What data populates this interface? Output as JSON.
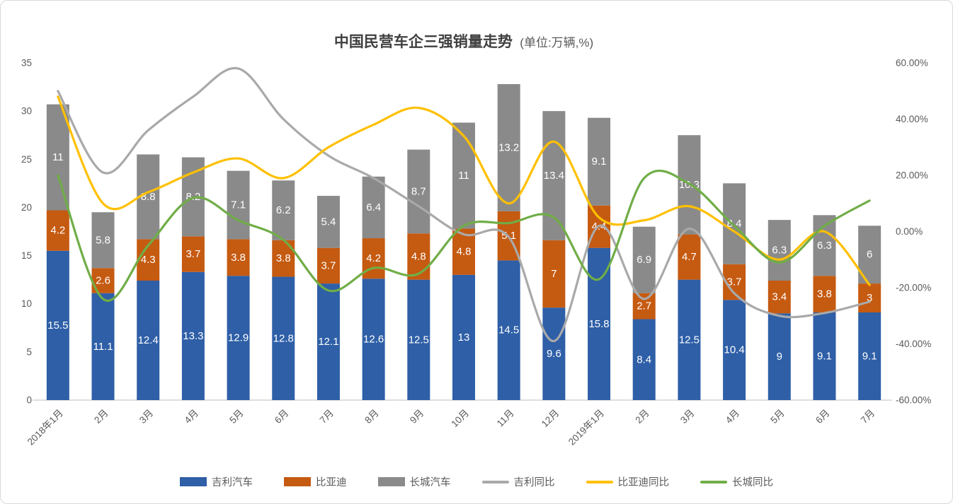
{
  "title": {
    "main": "中国民营车企三强销量走势",
    "unit": "(单位:万辆,%)"
  },
  "chart_data": {
    "type": "bar",
    "subtype": "stacked-bars-with-lines",
    "categories": [
      "2018年1月",
      "2月",
      "3月",
      "4月",
      "5月",
      "6月",
      "7月",
      "8月",
      "9月",
      "10月",
      "11月",
      "12月",
      "2019年1月",
      "2月",
      "3月",
      "4月",
      "5月",
      "6月",
      "7月"
    ],
    "bar_series": [
      {
        "name": "吉利汽车",
        "color": "#2E5FA7",
        "values": [
          15.5,
          11.1,
          12.4,
          13.3,
          12.9,
          12.8,
          12.1,
          12.6,
          12.5,
          13,
          14.5,
          9.6,
          15.8,
          8.4,
          12.5,
          10.4,
          9,
          9.1,
          9.1
        ]
      },
      {
        "name": "比亚迪",
        "color": "#C55A11",
        "values": [
          4.2,
          2.6,
          4.3,
          3.7,
          3.8,
          3.8,
          3.7,
          4.2,
          4.8,
          4.8,
          5.1,
          7,
          4.4,
          2.7,
          4.7,
          3.7,
          3.4,
          3.8,
          3
        ]
      },
      {
        "name": "长城汽车",
        "color": "#8A8A8A",
        "values": [
          11,
          5.8,
          8.8,
          8.2,
          7.1,
          6.2,
          5.4,
          6.4,
          8.7,
          11,
          13.2,
          13.4,
          9.1,
          6.9,
          10.3,
          8.4,
          6.3,
          6.3,
          6
        ]
      }
    ],
    "line_series": [
      {
        "name": "吉利同比",
        "color": "#A9A9A9",
        "values": [
          50,
          21,
          36,
          48,
          58,
          40,
          27,
          19,
          9,
          -1,
          -2,
          -39,
          2,
          -24,
          1,
          -22,
          -30,
          -29,
          -25
        ]
      },
      {
        "name": "比亚迪同比",
        "color": "#FFC000",
        "values": [
          48,
          10,
          14,
          21,
          26,
          19,
          30,
          38,
          44,
          34,
          10,
          32,
          5,
          4,
          9,
          0,
          -10,
          0,
          -19
        ]
      },
      {
        "name": "长城同比",
        "color": "#70AD47",
        "values": [
          20,
          -24,
          -5,
          12,
          4,
          -3,
          -21,
          -13,
          -15,
          2,
          3,
          5,
          -17,
          19,
          17,
          2,
          -11,
          2,
          11
        ]
      }
    ],
    "left_axis": {
      "min": 0,
      "max": 35,
      "step": 5,
      "tick_labels": [
        "0",
        "5",
        "10",
        "15",
        "20",
        "25",
        "30",
        "35"
      ]
    },
    "right_axis": {
      "min": -60,
      "max": 60,
      "step": 20,
      "tick_labels": [
        "-60.00%",
        "-40.00%",
        "-20.00%",
        "0.00%",
        "20.00%",
        "40.00%",
        "60.00%"
      ]
    },
    "grid": false,
    "legend_position": "bottom",
    "bar_label_color": "#FFFFFF",
    "axis_text_color": "#595959",
    "axis_line_color": "#c9c9c9"
  }
}
